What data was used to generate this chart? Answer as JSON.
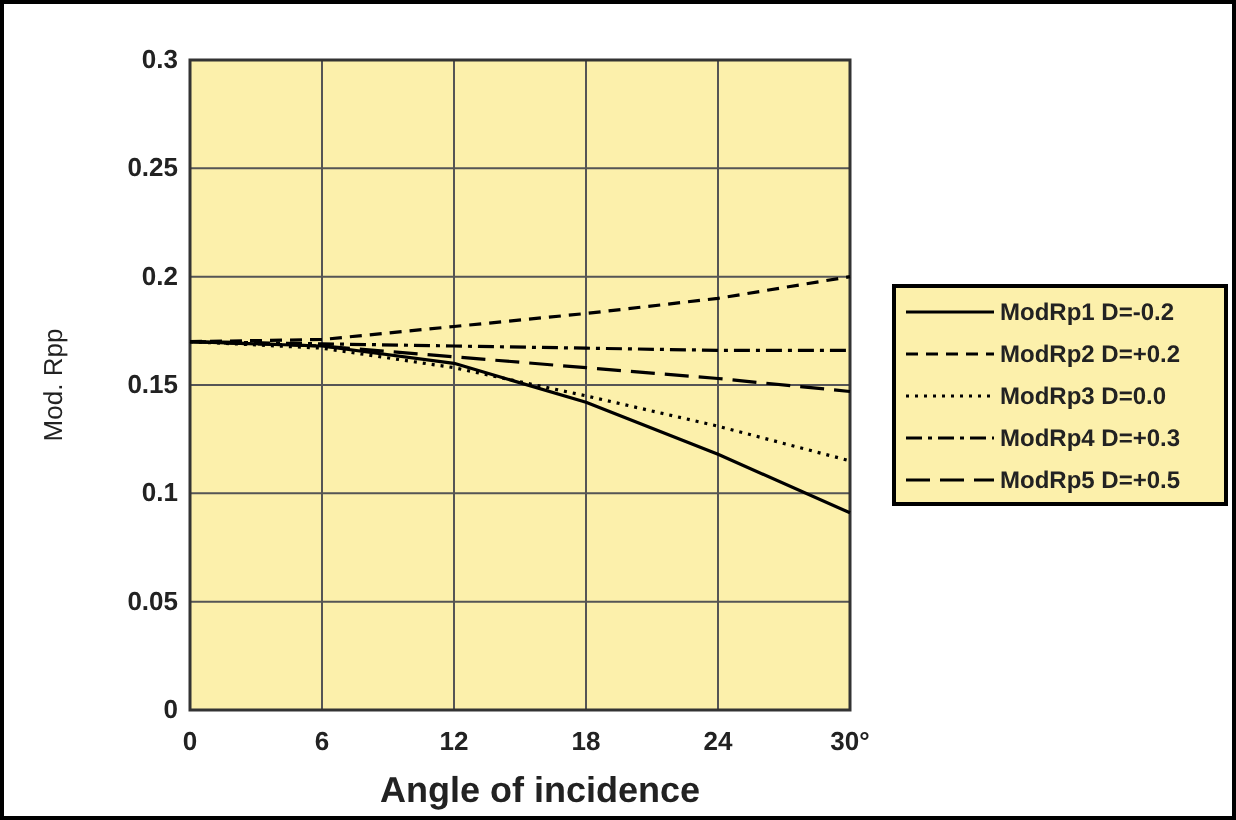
{
  "chart_data": {
    "type": "line",
    "xlabel": "Angle of incidence",
    "ylabel": "Mod. Rpp",
    "x": [
      0,
      6,
      12,
      18,
      24,
      30
    ],
    "xlim": [
      0,
      30
    ],
    "xticks": [
      0,
      6,
      12,
      18,
      24,
      {
        "value": 30,
        "label": "30°"
      }
    ],
    "ylim": [
      0,
      0.3
    ],
    "yticks": [
      0,
      0.05,
      0.1,
      0.15,
      0.2,
      0.25,
      0.3
    ],
    "grid": true,
    "legend": "right",
    "marker": "none",
    "series": [
      {
        "name": "ModRp1 D=-0.2",
        "color": "#000000",
        "line_style": "solid",
        "values": [
          0.17,
          0.168,
          0.16,
          0.142,
          0.118,
          0.091
        ]
      },
      {
        "name": "ModRp2 D=+0.2",
        "color": "#000000",
        "line_style": "dashed",
        "values": [
          0.17,
          0.171,
          0.177,
          0.183,
          0.19,
          0.2
        ]
      },
      {
        "name": "ModRp3 D=0.0",
        "color": "#000000",
        "line_style": "dotted",
        "values": [
          0.17,
          0.167,
          0.158,
          0.145,
          0.131,
          0.115
        ]
      },
      {
        "name": "ModRp4 D=+0.3",
        "color": "#000000",
        "line_style": "dashdot",
        "values": [
          0.17,
          0.169,
          0.168,
          0.167,
          0.166,
          0.166
        ]
      },
      {
        "name": "ModRp5 D=+0.5",
        "color": "#000000",
        "line_style": "longdash",
        "values": [
          0.17,
          0.168,
          0.163,
          0.158,
          0.153,
          0.147
        ]
      }
    ]
  }
}
